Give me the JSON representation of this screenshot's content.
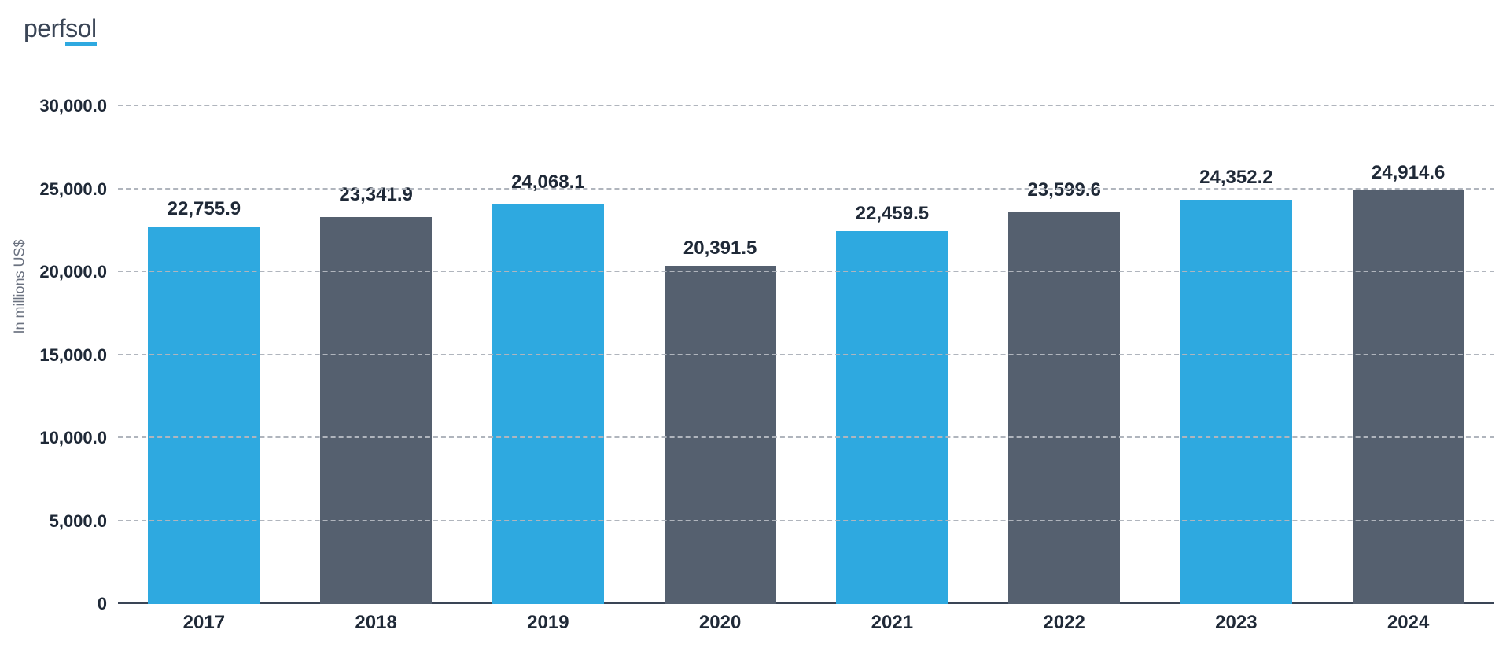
{
  "logo": {
    "prefix": "perf",
    "suffix": "sol",
    "text_color": "#3a4556",
    "underline_color": "#2ea9e0"
  },
  "chart": {
    "type": "bar",
    "ylabel": "In millions US$",
    "ylim": [
      0,
      30000
    ],
    "ytick_step": 5000,
    "y_ticks": [
      {
        "value": 0,
        "label": "0"
      },
      {
        "value": 5000,
        "label": "5,000.0"
      },
      {
        "value": 10000,
        "label": "10,000.0"
      },
      {
        "value": 15000,
        "label": "15,000.0"
      },
      {
        "value": 20000,
        "label": "20,000.0"
      },
      {
        "value": 25000,
        "label": "25,000.0"
      },
      {
        "value": 30000,
        "label": "30,000.0"
      }
    ],
    "categories": [
      "2017",
      "2018",
      "2019",
      "2020",
      "2021",
      "2022",
      "2023",
      "2024"
    ],
    "values": [
      22755.9,
      23341.9,
      24068.1,
      20391.5,
      22459.5,
      23599.6,
      24352.2,
      24914.6
    ],
    "value_labels": [
      "22,755.9",
      "23,341.9",
      "24,068.1",
      "20,391.5",
      "22,459.5",
      "23,599.6",
      "24,352.2",
      "24,914.6"
    ],
    "bar_colors": [
      "#2ea9e0",
      "#55606f",
      "#2ea9e0",
      "#55606f",
      "#2ea9e0",
      "#55606f",
      "#2ea9e0",
      "#55606f"
    ],
    "label_boxed": [
      false,
      true,
      true,
      false,
      false,
      true,
      true,
      false
    ],
    "label_box_heights": [
      0,
      58,
      58,
      0,
      0,
      58,
      58,
      0
    ],
    "background_color": "#ffffff",
    "grid_color": "#b0b5bd",
    "axis_color": "#3a4556",
    "tick_fontsize": 22,
    "label_fontsize": 24,
    "bar_width": 0.65
  }
}
